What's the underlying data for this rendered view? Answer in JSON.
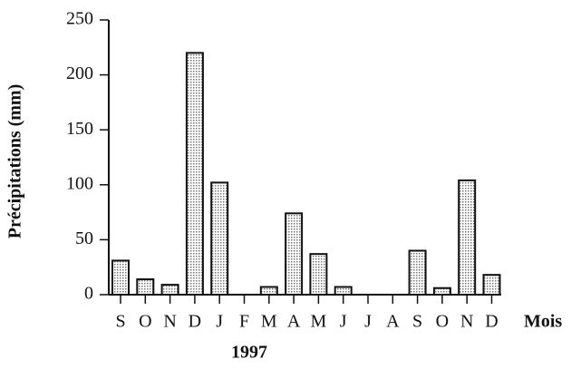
{
  "chart_data": {
    "type": "bar",
    "y_label": "Précipitations (mm)",
    "x_label": "Mois",
    "annotation": "1997",
    "categories": [
      "S",
      "O",
      "N",
      "D",
      "J",
      "F",
      "M",
      "A",
      "M",
      "J",
      "J",
      "A",
      "S",
      "O",
      "N",
      "D"
    ],
    "values": [
      31,
      14,
      9,
      220,
      102,
      0,
      7,
      74,
      37,
      7,
      0,
      0,
      40,
      6,
      104,
      18
    ],
    "color": "#777777",
    "ylim": [
      0,
      250
    ],
    "yticks": [
      0,
      50,
      100,
      150,
      200,
      250
    ],
    "grid": false
  }
}
